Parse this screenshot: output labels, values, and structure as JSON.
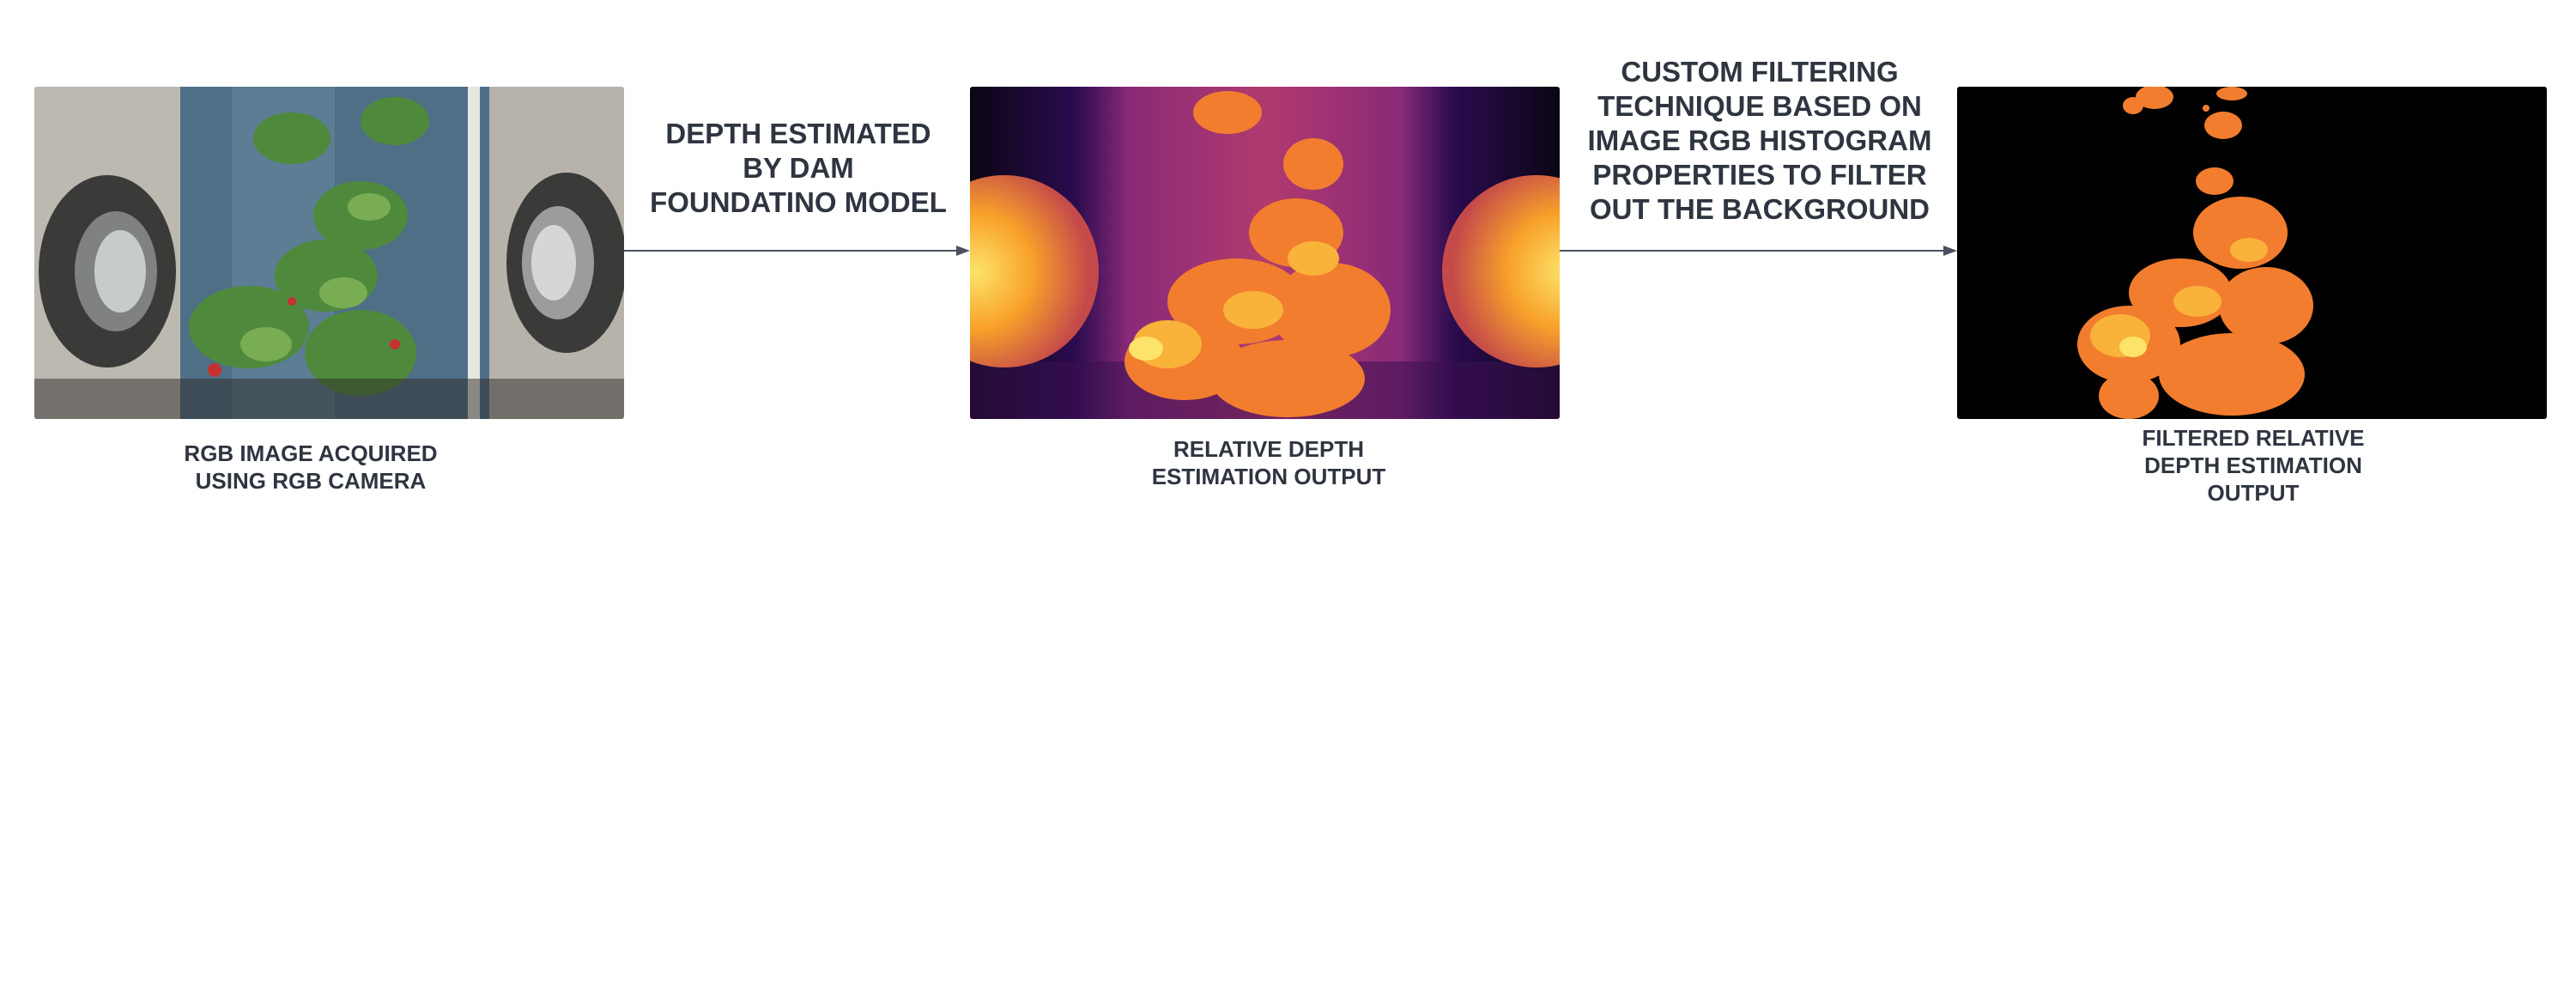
{
  "diagram": {
    "stages": [
      {
        "name": "rgb-image",
        "caption": "RGB IMAGE ACQUIRED\nUSING RGB CAMERA"
      },
      {
        "name": "relative-depth",
        "caption": "RELATIVE DEPTH\nESTIMATION OUTPUT"
      },
      {
        "name": "filtered-depth",
        "caption": "FILTERED RELATIVE\nDEPTH ESTIMATION\nOUTPUT"
      }
    ],
    "transitions": [
      {
        "label": "DEPTH ESTIMATED\nBY DAM\nFOUNDATINO MODEL"
      },
      {
        "label": "CUSTOM FILTERING\nTECHNIQUE BASED ON\nIMAGE RGB HISTOGRAM\nPROPERTIES TO FILTER\nOUT THE BACKGROUND"
      }
    ],
    "colors": {
      "text": "#2f3540",
      "arrow": "#4a5060",
      "depth_background": "#0a0614",
      "depth_mid": "#a8356e",
      "depth_near": "#f9a421",
      "filtered_background": "#000000"
    }
  }
}
